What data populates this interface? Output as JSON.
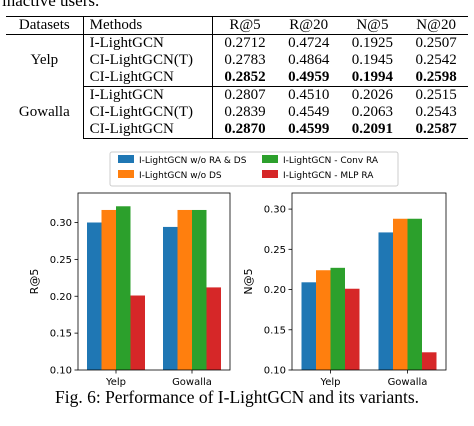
{
  "intro_text": "inactive users.",
  "table": {
    "headers": [
      "Datasets",
      "Methods",
      "R@5",
      "R@20",
      "N@5",
      "N@20"
    ],
    "groups": [
      {
        "dataset": "Yelp",
        "rows": [
          {
            "method": "I-LightGCN",
            "values": [
              "0.2712",
              "0.4724",
              "0.1925",
              "0.2507"
            ],
            "bold": false
          },
          {
            "method": "CI-LightGCN(T)",
            "values": [
              "0.2783",
              "0.4864",
              "0.1945",
              "0.2542"
            ],
            "bold": false
          },
          {
            "method": "CI-LightGCN",
            "values": [
              "0.2852",
              "0.4959",
              "0.1994",
              "0.2598"
            ],
            "bold": true
          }
        ]
      },
      {
        "dataset": "Gowalla",
        "rows": [
          {
            "method": "I-LightGCN",
            "values": [
              "0.2807",
              "0.4510",
              "0.2026",
              "0.2515"
            ],
            "bold": false
          },
          {
            "method": "CI-LightGCN(T)",
            "values": [
              "0.2839",
              "0.4549",
              "0.2063",
              "0.2543"
            ],
            "bold": false
          },
          {
            "method": "CI-LightGCN",
            "values": [
              "0.2870",
              "0.4599",
              "0.2091",
              "0.2587"
            ],
            "bold": true
          }
        ]
      }
    ]
  },
  "legend": [
    {
      "name": "I-LightGCN w/o RA & DS",
      "color": "#1f77b4"
    },
    {
      "name": "I-LightGCN w/o DS",
      "color": "#ff7f0e"
    },
    {
      "name": "I-LightGCN - Conv RA",
      "color": "#2ca02c"
    },
    {
      "name": "I-LightGCN - MLP RA",
      "color": "#d62728"
    }
  ],
  "chart_data": [
    {
      "type": "bar",
      "ylabel": "R@5",
      "xlabel": "",
      "categories": [
        "Yelp",
        "Gowalla"
      ],
      "ylim": [
        0.1,
        0.34
      ],
      "yticks": [
        "0.10",
        "0.15",
        "0.20",
        "0.25",
        "0.30"
      ],
      "series": [
        {
          "name": "I-LightGCN w/o RA & DS",
          "values": [
            0.3,
            0.294
          ]
        },
        {
          "name": "I-LightGCN w/o DS",
          "values": [
            0.317,
            0.317
          ]
        },
        {
          "name": "I-LightGCN - Conv RA",
          "values": [
            0.322,
            0.317
          ]
        },
        {
          "name": "I-LightGCN - MLP RA",
          "values": [
            0.201,
            0.212
          ]
        }
      ]
    },
    {
      "type": "bar",
      "ylabel": "N@5",
      "xlabel": "",
      "categories": [
        "Yelp",
        "Gowalla"
      ],
      "ylim": [
        0.1,
        0.32
      ],
      "yticks": [
        "0.10",
        "0.15",
        "0.20",
        "0.25",
        "0.30"
      ],
      "series": [
        {
          "name": "I-LightGCN w/o RA & DS",
          "values": [
            0.209,
            0.271
          ]
        },
        {
          "name": "I-LightGCN w/o DS",
          "values": [
            0.224,
            0.288
          ]
        },
        {
          "name": "I-LightGCN - Conv RA",
          "values": [
            0.227,
            0.288
          ]
        },
        {
          "name": "I-LightGCN - MLP RA",
          "values": [
            0.201,
            0.122
          ]
        }
      ]
    }
  ],
  "caption": "Fig. 6: Performance of I-LightGCN and its variants."
}
